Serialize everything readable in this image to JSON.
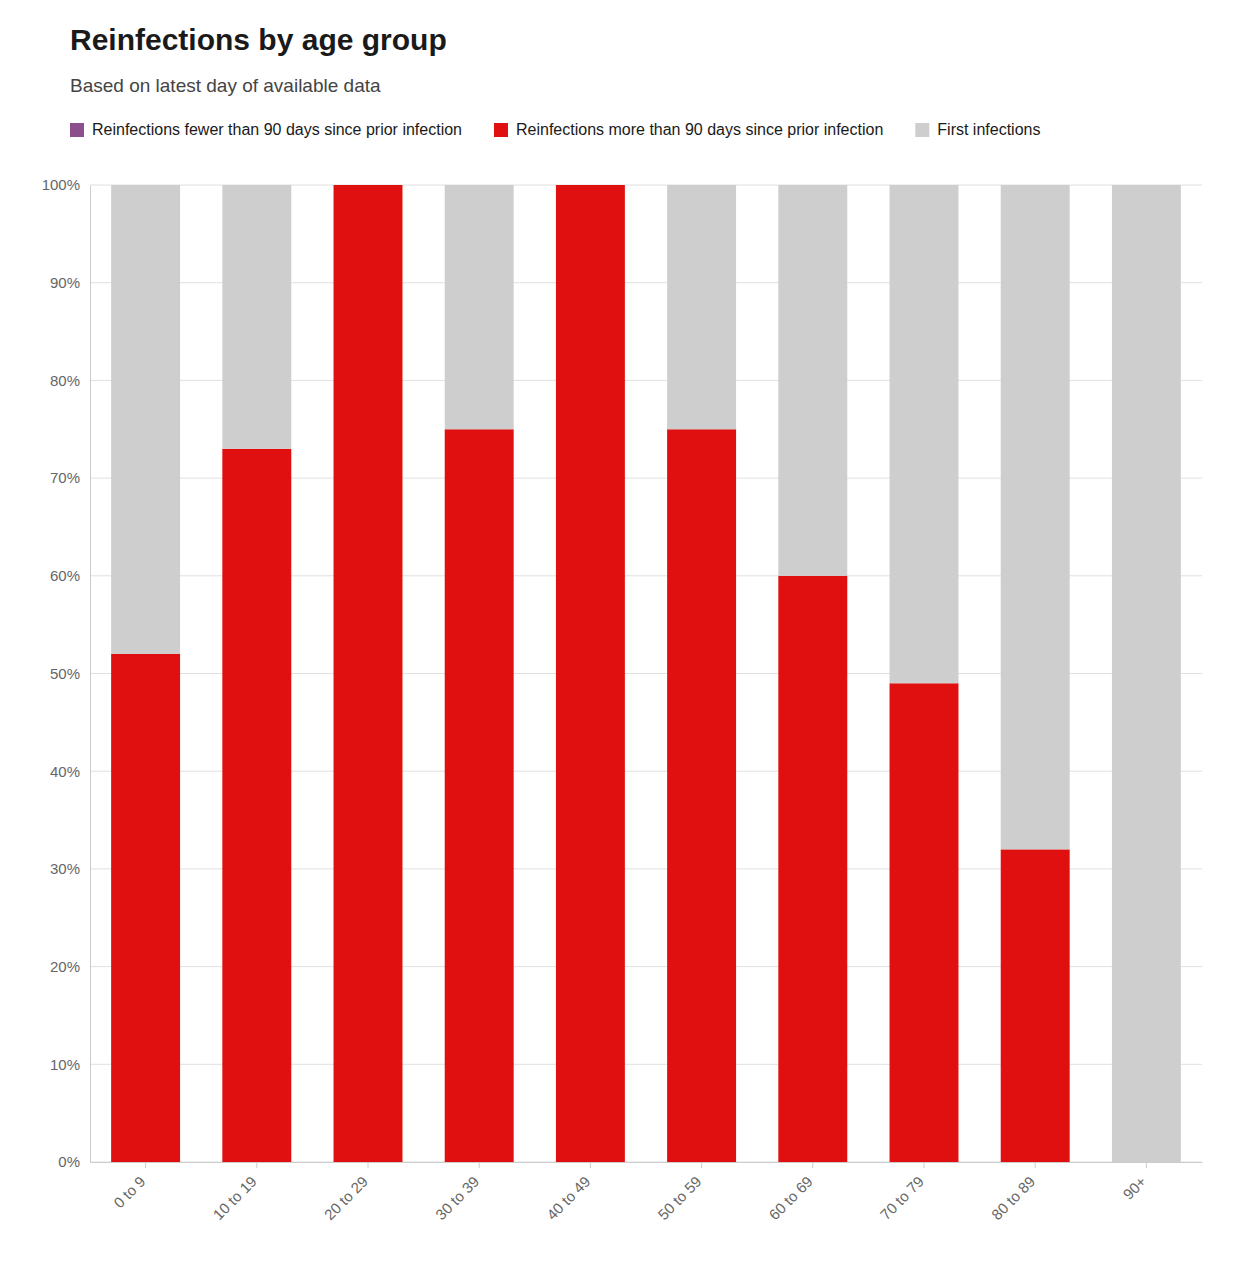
{
  "chart_data": {
    "type": "bar",
    "stacked": true,
    "title": "Reinfections by age group",
    "subtitle": "Based on latest day of available data",
    "categories": [
      "0 to 9",
      "10 to 19",
      "20 to 29",
      "30 to 39",
      "40 to 49",
      "50 to 59",
      "60 to 69",
      "70 to 79",
      "80 to 89",
      "90+"
    ],
    "series": [
      {
        "name": "Reinfections fewer than 90 days since prior infection",
        "color": "#8b4f8b",
        "values": [
          0,
          0,
          0,
          0,
          0,
          0,
          0,
          0,
          0,
          0
        ]
      },
      {
        "name": "Reinfections more than 90 days since prior infection",
        "color": "#e01010",
        "values": [
          52,
          73,
          100,
          75,
          100,
          75,
          60,
          49,
          32,
          0
        ]
      },
      {
        "name": "First infections",
        "color": "#cecece",
        "values": [
          48,
          27,
          0,
          25,
          0,
          25,
          40,
          51,
          68,
          100
        ]
      }
    ],
    "ylim": [
      0,
      100
    ],
    "yticks": [
      {
        "value": 0,
        "label": "0%"
      },
      {
        "value": 10,
        "label": "10%"
      },
      {
        "value": 20,
        "label": "20%"
      },
      {
        "value": 30,
        "label": "30%"
      },
      {
        "value": 40,
        "label": "40%"
      },
      {
        "value": 50,
        "label": "50%"
      },
      {
        "value": 60,
        "label": "60%"
      },
      {
        "value": 70,
        "label": "70%"
      },
      {
        "value": 80,
        "label": "80%"
      },
      {
        "value": 90,
        "label": "90%"
      },
      {
        "value": 100,
        "label": "100%"
      }
    ],
    "grid": true,
    "legend": "top-left"
  }
}
